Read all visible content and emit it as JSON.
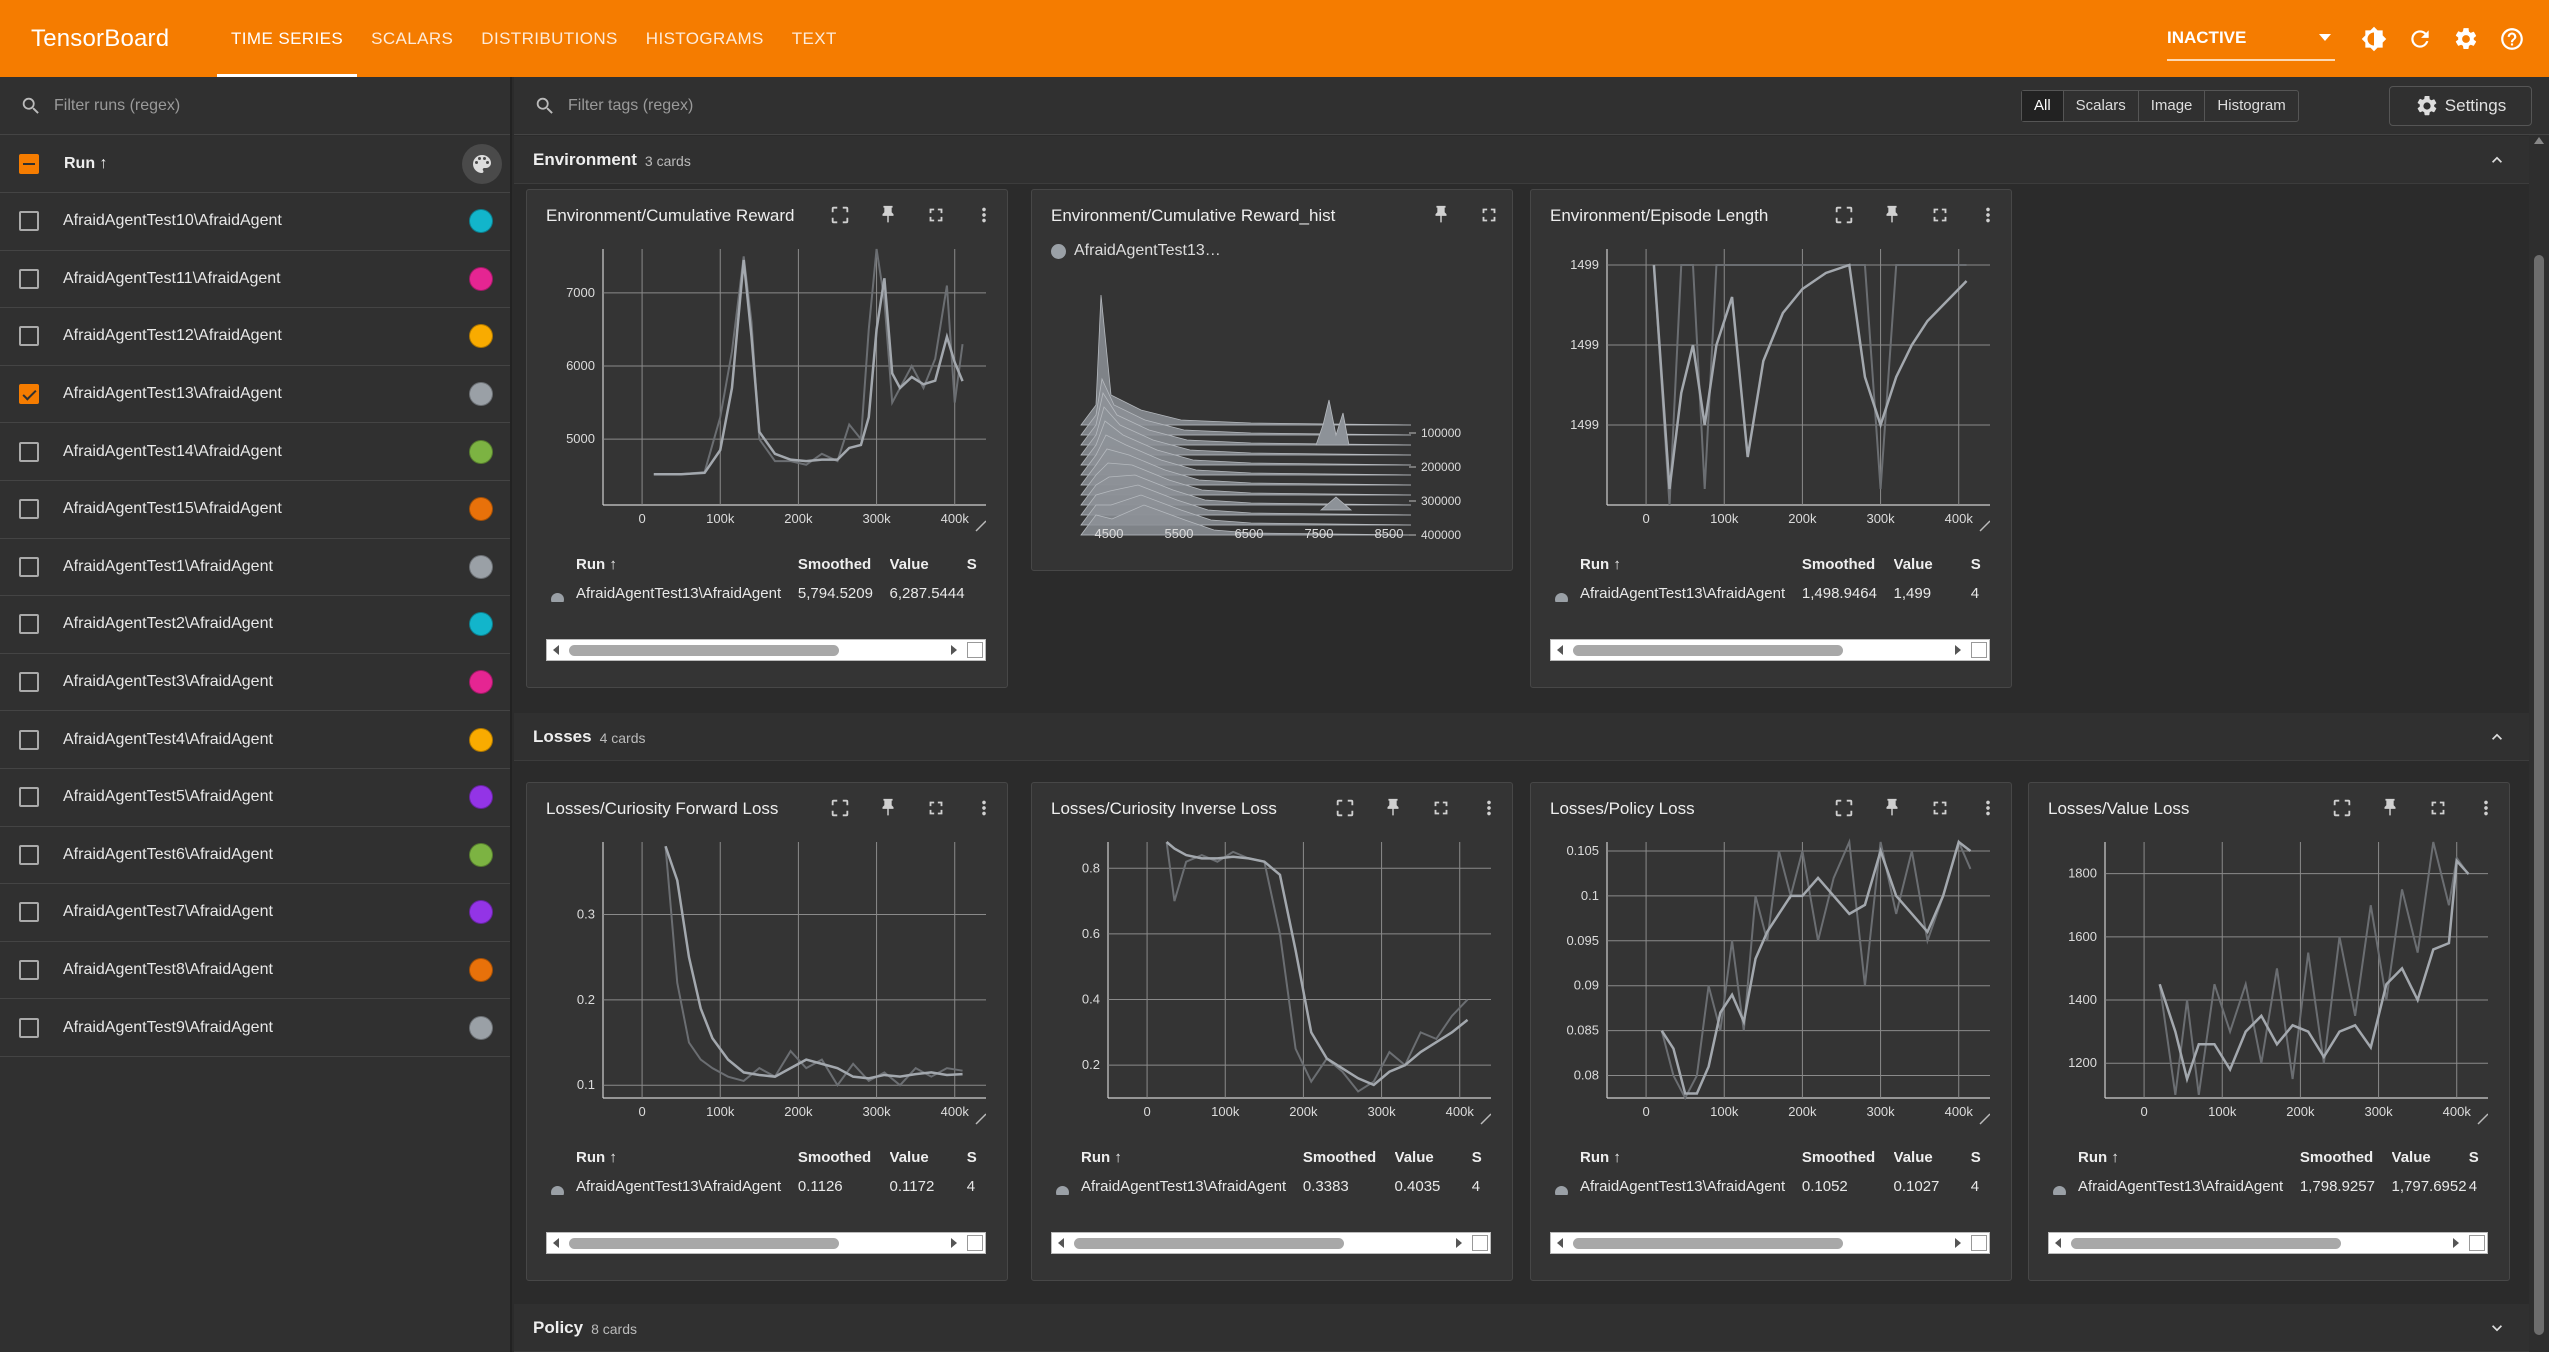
{
  "app": {
    "title": "TensorBoard",
    "tabs": [
      "TIME SERIES",
      "SCALARS",
      "DISTRIBUTIONS",
      "HISTOGRAMS",
      "TEXT"
    ],
    "active_tab": "TIME SERIES",
    "status": "INACTIVE",
    "accent_color": "#f57c00"
  },
  "sidebar": {
    "filter_placeholder": "Filter runs (regex)",
    "run_header": "Run ↑",
    "runs": [
      {
        "name": "AfraidAgentTest10\\AfraidAgent",
        "checked": false,
        "color": "#12b5cb"
      },
      {
        "name": "AfraidAgentTest11\\AfraidAgent",
        "checked": false,
        "color": "#e52592"
      },
      {
        "name": "AfraidAgentTest12\\AfraidAgent",
        "checked": false,
        "color": "#f9ab00"
      },
      {
        "name": "AfraidAgentTest13\\AfraidAgent",
        "checked": true,
        "color": "#9aa0a6"
      },
      {
        "name": "AfraidAgentTest14\\AfraidAgent",
        "checked": false,
        "color": "#7cb342"
      },
      {
        "name": "AfraidAgentTest15\\AfraidAgent",
        "checked": false,
        "color": "#e8710a"
      },
      {
        "name": "AfraidAgentTest1\\AfraidAgent",
        "checked": false,
        "color": "#9aa0a6"
      },
      {
        "name": "AfraidAgentTest2\\AfraidAgent",
        "checked": false,
        "color": "#12b5cb"
      },
      {
        "name": "AfraidAgentTest3\\AfraidAgent",
        "checked": false,
        "color": "#e52592"
      },
      {
        "name": "AfraidAgentTest4\\AfraidAgent",
        "checked": false,
        "color": "#f9ab00"
      },
      {
        "name": "AfraidAgentTest5\\AfraidAgent",
        "checked": false,
        "color": "#9334e6"
      },
      {
        "name": "AfraidAgentTest6\\AfraidAgent",
        "checked": false,
        "color": "#7cb342"
      },
      {
        "name": "AfraidAgentTest7\\AfraidAgent",
        "checked": false,
        "color": "#9334e6"
      },
      {
        "name": "AfraidAgentTest8\\AfraidAgent",
        "checked": false,
        "color": "#e8710a"
      },
      {
        "name": "AfraidAgentTest9\\AfraidAgent",
        "checked": false,
        "color": "#9aa0a6"
      }
    ]
  },
  "toolbar": {
    "filter_placeholder": "Filter tags (regex)",
    "filters": [
      "All",
      "Scalars",
      "Image",
      "Histogram"
    ],
    "active_filter": "All",
    "settings_label": "Settings"
  },
  "groups": [
    {
      "name": "Environment",
      "count": "3 cards",
      "expanded": true
    },
    {
      "name": "Losses",
      "count": "4 cards",
      "expanded": true
    },
    {
      "name": "Policy",
      "count": "8 cards",
      "expanded": false
    }
  ],
  "table_headers": {
    "run": "Run ↑",
    "smoothed": "Smoothed",
    "value": "Value",
    "step": "S"
  },
  "hist_card": {
    "title": "Environment/Cumulative Reward_hist",
    "legend": "AfraidAgentTest13…",
    "x_ticks": [
      "4500",
      "5500",
      "6500",
      "7500",
      "8500"
    ],
    "y_ticks": [
      "100000",
      "200000",
      "300000",
      "400000"
    ]
  },
  "chart_data": [
    {
      "type": "line",
      "title": "Environment/Cumulative Reward",
      "run": "AfraidAgentTest13\\AfraidAgent",
      "smoothed": "5,794.5209",
      "value": "6,287.5444",
      "step": "",
      "xlim": [
        -50000,
        440000
      ],
      "ylim": [
        4100,
        7600
      ],
      "x_ticks": [
        "0",
        "100k",
        "200k",
        "300k",
        "400k"
      ],
      "y_ticks": [
        {
          "v": 5000,
          "label": "5000"
        },
        {
          "v": 6000,
          "label": "6000"
        },
        {
          "v": 7000,
          "label": "7000"
        }
      ],
      "x": [
        15000,
        50000,
        80000,
        100000,
        115000,
        130000,
        140000,
        150000,
        170000,
        190000,
        210000,
        230000,
        250000,
        265000,
        280000,
        290000,
        300000,
        310000,
        320000,
        330000,
        345000,
        360000,
        375000,
        390000,
        400000,
        410000
      ],
      "raw": [
        4520,
        4520,
        4550,
        5300,
        6200,
        7500,
        6600,
        5000,
        4700,
        4700,
        4650,
        4800,
        4700,
        5200,
        5000,
        6500,
        7600,
        6900,
        5500,
        5700,
        6000,
        5700,
        6100,
        7100,
        5500,
        6300
      ],
      "smooth": [
        4520,
        4520,
        4540,
        4850,
        5700,
        7450,
        6400,
        5100,
        4800,
        4720,
        4700,
        4720,
        4720,
        4880,
        4920,
        5300,
        6500,
        7200,
        5900,
        5700,
        5850,
        5750,
        5800,
        6400,
        6050,
        5794
      ]
    },
    {
      "type": "line",
      "title": "Environment/Episode Length",
      "run": "AfraidAgentTest13\\AfraidAgent",
      "smoothed": "1,498.9464",
      "value": "1,499",
      "step": "4",
      "xlim": [
        -50000,
        440000
      ],
      "ylim": [
        1498.85,
        1499.01
      ],
      "x_ticks": [
        "0",
        "100k",
        "200k",
        "300k",
        "400k"
      ],
      "y_ticks": [
        {
          "v": 1498.9,
          "label": "1499"
        },
        {
          "v": 1498.95,
          "label": "1499"
        },
        {
          "v": 1499.0,
          "label": "1499"
        }
      ],
      "x": [
        10000,
        30000,
        45000,
        60000,
        75000,
        90000,
        110000,
        130000,
        150000,
        175000,
        200000,
        230000,
        260000,
        280000,
        300000,
        320000,
        340000,
        360000,
        380000,
        400000,
        410000
      ],
      "raw": [
        1499,
        1498.85,
        1499,
        1499,
        1498.86,
        1499,
        1499,
        1499,
        1499,
        1499,
        1499,
        1499,
        1499,
        1499,
        1498.86,
        1499,
        1499,
        1499,
        1499,
        1499,
        1499
      ],
      "smooth": [
        1499,
        1498.86,
        1498.92,
        1498.95,
        1498.9,
        1498.95,
        1498.98,
        1498.88,
        1498.94,
        1498.97,
        1498.985,
        1498.995,
        1499.0,
        1498.93,
        1498.9,
        1498.93,
        1498.95,
        1498.965,
        1498.975,
        1498.985,
        1498.99
      ]
    },
    {
      "type": "line",
      "title": "Losses/Curiosity Forward Loss",
      "run": "AfraidAgentTest13\\AfraidAgent",
      "smoothed": "0.1126",
      "value": "0.1172",
      "step": "4",
      "xlim": [
        -50000,
        440000
      ],
      "ylim": [
        0.085,
        0.385
      ],
      "x_ticks": [
        "0",
        "100k",
        "200k",
        "300k",
        "400k"
      ],
      "y_ticks": [
        {
          "v": 0.1,
          "label": "0.1"
        },
        {
          "v": 0.2,
          "label": "0.2"
        },
        {
          "v": 0.3,
          "label": "0.3"
        }
      ],
      "x": [
        30000,
        45000,
        60000,
        75000,
        90000,
        110000,
        130000,
        150000,
        170000,
        190000,
        210000,
        230000,
        250000,
        270000,
        290000,
        310000,
        330000,
        350000,
        370000,
        390000,
        410000
      ],
      "raw": [
        0.38,
        0.22,
        0.15,
        0.13,
        0.12,
        0.11,
        0.105,
        0.12,
        0.11,
        0.14,
        0.12,
        0.13,
        0.1,
        0.125,
        0.105,
        0.115,
        0.1,
        0.12,
        0.11,
        0.12,
        0.117
      ],
      "smooth": [
        0.38,
        0.34,
        0.25,
        0.19,
        0.155,
        0.13,
        0.115,
        0.112,
        0.11,
        0.12,
        0.13,
        0.125,
        0.12,
        0.11,
        0.108,
        0.112,
        0.11,
        0.113,
        0.115,
        0.112,
        0.113
      ]
    },
    {
      "type": "line",
      "title": "Losses/Curiosity Inverse Loss",
      "run": "AfraidAgentTest13\\AfraidAgent",
      "smoothed": "0.3383",
      "value": "0.4035",
      "step": "4",
      "xlim": [
        -50000,
        440000
      ],
      "ylim": [
        0.1,
        0.88
      ],
      "x_ticks": [
        "0",
        "100k",
        "200k",
        "300k",
        "400k"
      ],
      "y_ticks": [
        {
          "v": 0.2,
          "label": "0.2"
        },
        {
          "v": 0.4,
          "label": "0.4"
        },
        {
          "v": 0.6,
          "label": "0.6"
        },
        {
          "v": 0.8,
          "label": "0.8"
        }
      ],
      "x": [
        25000,
        35000,
        50000,
        70000,
        90000,
        110000,
        130000,
        150000,
        170000,
        190000,
        210000,
        230000,
        250000,
        270000,
        290000,
        310000,
        330000,
        350000,
        370000,
        390000,
        410000
      ],
      "raw": [
        0.88,
        0.7,
        0.82,
        0.84,
        0.82,
        0.85,
        0.83,
        0.82,
        0.6,
        0.25,
        0.15,
        0.22,
        0.18,
        0.12,
        0.15,
        0.24,
        0.2,
        0.3,
        0.28,
        0.35,
        0.4
      ],
      "smooth": [
        0.88,
        0.86,
        0.84,
        0.83,
        0.83,
        0.835,
        0.83,
        0.82,
        0.78,
        0.55,
        0.3,
        0.22,
        0.19,
        0.16,
        0.14,
        0.18,
        0.2,
        0.24,
        0.27,
        0.3,
        0.338
      ]
    },
    {
      "type": "line",
      "title": "Losses/Policy Loss",
      "run": "AfraidAgentTest13\\AfraidAgent",
      "smoothed": "0.1052",
      "value": "0.1027",
      "step": "4",
      "xlim": [
        -50000,
        440000
      ],
      "ylim": [
        0.0775,
        0.106
      ],
      "x_ticks": [
        "0",
        "100k",
        "200k",
        "300k",
        "400k"
      ],
      "y_ticks": [
        {
          "v": 0.08,
          "label": "0.08"
        },
        {
          "v": 0.085,
          "label": "0.085"
        },
        {
          "v": 0.09,
          "label": "0.09"
        },
        {
          "v": 0.095,
          "label": "0.095"
        },
        {
          "v": 0.1,
          "label": "0.1"
        },
        {
          "v": 0.105,
          "label": "0.105"
        }
      ],
      "x": [
        20000,
        35000,
        50000,
        65000,
        80000,
        95000,
        110000,
        125000,
        140000,
        155000,
        170000,
        185000,
        200000,
        220000,
        240000,
        260000,
        280000,
        300000,
        320000,
        340000,
        360000,
        380000,
        400000,
        415000
      ],
      "raw": [
        0.085,
        0.08,
        0.0775,
        0.08,
        0.09,
        0.085,
        0.095,
        0.085,
        0.1,
        0.095,
        0.105,
        0.1,
        0.105,
        0.095,
        0.102,
        0.106,
        0.09,
        0.106,
        0.098,
        0.105,
        0.095,
        0.1,
        0.106,
        0.103
      ],
      "smooth": [
        0.085,
        0.083,
        0.078,
        0.078,
        0.081,
        0.087,
        0.089,
        0.086,
        0.093,
        0.096,
        0.098,
        0.1,
        0.1,
        0.102,
        0.1,
        0.098,
        0.099,
        0.105,
        0.1,
        0.098,
        0.096,
        0.1,
        0.106,
        0.105
      ]
    },
    {
      "type": "line",
      "title": "Losses/Value Loss",
      "run": "AfraidAgentTest13\\AfraidAgent",
      "smoothed": "1,798.9257",
      "value": "1,797.6952",
      "step": "4",
      "xlim": [
        -50000,
        440000
      ],
      "ylim": [
        1090,
        1900
      ],
      "x_ticks": [
        "0",
        "100k",
        "200k",
        "300k",
        "400k"
      ],
      "y_ticks": [
        {
          "v": 1200,
          "label": "1200"
        },
        {
          "v": 1400,
          "label": "1400"
        },
        {
          "v": 1600,
          "label": "1600"
        },
        {
          "v": 1800,
          "label": "1800"
        }
      ],
      "x": [
        20000,
        40000,
        55000,
        70000,
        90000,
        110000,
        130000,
        150000,
        170000,
        190000,
        210000,
        230000,
        250000,
        270000,
        290000,
        310000,
        330000,
        350000,
        370000,
        390000,
        400000,
        415000
      ],
      "raw": [
        1450,
        1100,
        1400,
        1100,
        1450,
        1300,
        1450,
        1200,
        1500,
        1150,
        1550,
        1200,
        1600,
        1350,
        1700,
        1400,
        1750,
        1550,
        1900,
        1700,
        1850,
        1797
      ],
      "smooth": [
        1450,
        1300,
        1150,
        1260,
        1260,
        1180,
        1300,
        1350,
        1260,
        1320,
        1300,
        1220,
        1300,
        1320,
        1250,
        1450,
        1500,
        1400,
        1560,
        1580,
        1840,
        1799
      ]
    }
  ]
}
